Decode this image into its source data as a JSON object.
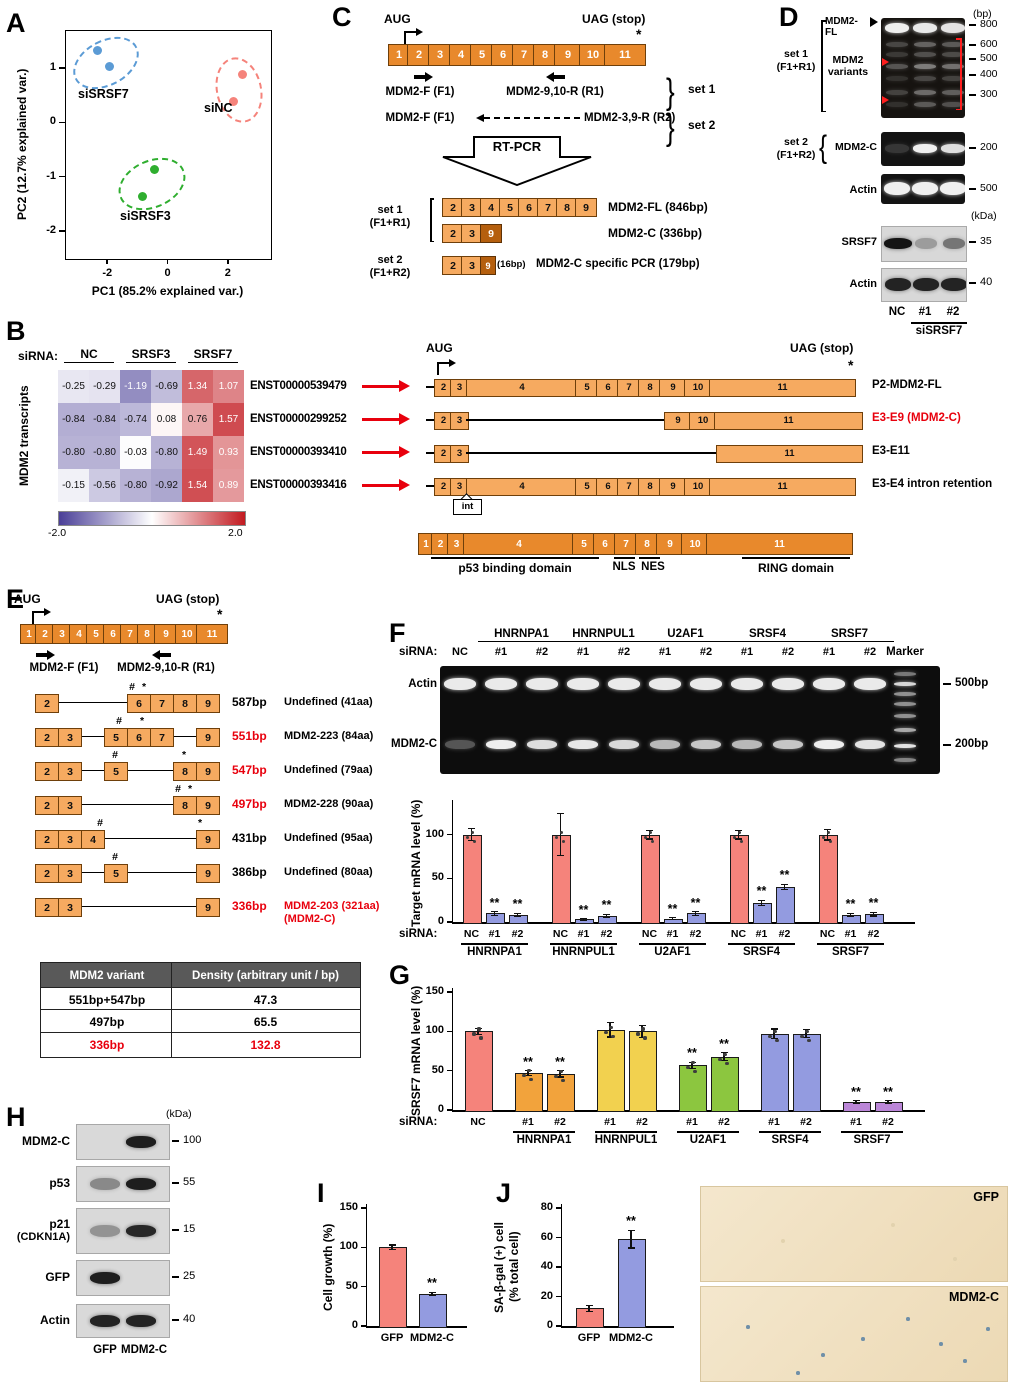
{
  "panels": {
    "A": "A",
    "B": "B",
    "C": "C",
    "D": "D",
    "E": "E",
    "F": "F",
    "G": "G",
    "H": "H",
    "I": "I",
    "J": "J"
  },
  "colors": {
    "exon_dark": "#e8892c",
    "exon_light": "#f6aa60",
    "exon_deep": "#b55f0e",
    "accent_red": "#e8000d",
    "salmon": "#f5837b",
    "periwinkle": "#939be0",
    "orange": "#f2a33c",
    "yellow": "#f2d14f",
    "green": "#8cc63f",
    "purple": "#bb86d8",
    "heat_neg": "#4a3f97",
    "heat_pos": "#c21a20"
  },
  "chart_data": [
    {
      "id": "pca",
      "type": "scatter",
      "xlabel": "PC1 (85.2% explained var.)",
      "ylabel": "PC2 (12.7% explained var.)",
      "xlim": [
        -3.4,
        3.4
      ],
      "ylim": [
        -2.5,
        1.7
      ],
      "xticks": [
        -2,
        0,
        2
      ],
      "yticks": [
        1,
        0,
        -1,
        -2
      ],
      "series": [
        {
          "name": "siSRSF7",
          "color": "#5b9bd5",
          "points": [
            [
              -2.35,
              1.35
            ],
            [
              -1.95,
              1.05
            ]
          ]
        },
        {
          "name": "siNC",
          "color": "#f5837b",
          "points": [
            [
              2.45,
              0.9
            ],
            [
              2.15,
              0.4
            ]
          ]
        },
        {
          "name": "siSRSF3",
          "color": "#2fae2f",
          "points": [
            [
              -0.45,
              -0.85
            ],
            [
              -0.85,
              -1.35
            ]
          ]
        }
      ]
    },
    {
      "id": "mdm2_heatmap",
      "type": "heatmap",
      "vmin": -2,
      "vmax": 2,
      "col_groups": [
        "NC",
        "SRSF3",
        "SRSF7"
      ],
      "rows": [
        "ENST00000539479",
        "ENST00000299252",
        "ENST00000393410",
        "ENST00000393416"
      ],
      "values": [
        [
          -0.25,
          -0.29,
          -1.19,
          -0.69,
          1.34,
          1.07
        ],
        [
          -0.84,
          -0.84,
          -0.74,
          0.08,
          0.76,
          1.57
        ],
        [
          -0.8,
          -0.8,
          -0.03,
          -0.8,
          1.49,
          0.93
        ],
        [
          -0.15,
          -0.56,
          -0.8,
          -0.92,
          1.54,
          0.89
        ]
      ]
    },
    {
      "id": "target_mrna",
      "type": "bar",
      "ylabel": "Target mRNA level (%)",
      "ylim": [
        0,
        135
      ],
      "yticks": [
        0,
        50,
        100
      ],
      "sirna_label": "siRNA:",
      "groups": [
        {
          "name": "HNRNPA1",
          "bars": [
            {
              "label": "NC",
              "value": 100,
              "err": 7,
              "color": "salmon",
              "dots": true
            },
            {
              "label": "#1",
              "value": 10,
              "err": 2,
              "color": "periwinkle",
              "sig": "**"
            },
            {
              "label": "#2",
              "value": 8,
              "err": 2,
              "color": "periwinkle",
              "sig": "**"
            }
          ]
        },
        {
          "name": "HNRNPUL1",
          "bars": [
            {
              "label": "NC",
              "value": 100,
              "err": 24,
              "color": "salmon",
              "dots": true
            },
            {
              "label": "#1",
              "value": 3,
              "err": 1,
              "color": "periwinkle",
              "sig": "**"
            },
            {
              "label": "#2",
              "value": 7,
              "err": 2,
              "color": "periwinkle",
              "sig": "**"
            }
          ]
        },
        {
          "name": "U2AF1",
          "bars": [
            {
              "label": "NC",
              "value": 100,
              "err": 5,
              "color": "salmon",
              "dots": true
            },
            {
              "label": "#1",
              "value": 4,
              "err": 1,
              "color": "periwinkle",
              "sig": "**"
            },
            {
              "label": "#2",
              "value": 10,
              "err": 2,
              "color": "periwinkle",
              "sig": "**"
            }
          ]
        },
        {
          "name": "SRSF4",
          "bars": [
            {
              "label": "NC",
              "value": 100,
              "err": 5,
              "color": "salmon",
              "dots": true
            },
            {
              "label": "#1",
              "value": 22,
              "err": 3,
              "color": "periwinkle",
              "sig": "**"
            },
            {
              "label": "#2",
              "value": 40,
              "err": 3,
              "color": "periwinkle",
              "sig": "**"
            }
          ]
        },
        {
          "name": "SRSF7",
          "bars": [
            {
              "label": "NC",
              "value": 100,
              "err": 6,
              "color": "salmon",
              "dots": true
            },
            {
              "label": "#1",
              "value": 8,
              "err": 2,
              "color": "periwinkle",
              "sig": "**"
            },
            {
              "label": "#2",
              "value": 9,
              "err": 2,
              "color": "periwinkle",
              "sig": "**"
            }
          ]
        }
      ]
    },
    {
      "id": "srsf7_mrna",
      "type": "bar",
      "ylabel": "SRSF7 mRNA level (%)",
      "ylim": [
        0,
        150
      ],
      "yticks": [
        0,
        50,
        100,
        150
      ],
      "sirna_label": "siRNA:",
      "groups": [
        {
          "name": "",
          "bars": [
            {
              "label": "NC",
              "value": 100,
              "err": 4,
              "color": "salmon",
              "dots": true
            }
          ]
        },
        {
          "name": "HNRNPA1",
          "bars": [
            {
              "label": "#1",
              "value": 47,
              "err": 3,
              "color": "orange",
              "sig": "**",
              "dots": true
            },
            {
              "label": "#2",
              "value": 46,
              "err": 4,
              "color": "orange",
              "sig": "**",
              "dots": true
            }
          ]
        },
        {
          "name": "HNRNPUL1",
          "bars": [
            {
              "label": "#1",
              "value": 102,
              "err": 9,
              "color": "yellow",
              "dots": true
            },
            {
              "label": "#2",
              "value": 100,
              "err": 8,
              "color": "yellow",
              "dots": true
            }
          ]
        },
        {
          "name": "U2AF1",
          "bars": [
            {
              "label": "#1",
              "value": 57,
              "err": 4,
              "color": "green",
              "sig": "**",
              "dots": true
            },
            {
              "label": "#2",
              "value": 68,
              "err": 5,
              "color": "green",
              "sig": "**",
              "dots": true
            }
          ]
        },
        {
          "name": "SRSF4",
          "bars": [
            {
              "label": "#1",
              "value": 97,
              "err": 6,
              "color": "periwinkle",
              "dots": true
            },
            {
              "label": "#2",
              "value": 97,
              "err": 5,
              "color": "periwinkle",
              "dots": true
            }
          ]
        },
        {
          "name": "SRSF7",
          "bars": [
            {
              "label": "#1",
              "value": 10,
              "err": 2,
              "color": "purple",
              "sig": "**"
            },
            {
              "label": "#2",
              "value": 10,
              "err": 2,
              "color": "purple",
              "sig": "**"
            }
          ]
        }
      ]
    },
    {
      "id": "cell_growth",
      "type": "bar",
      "ylabel": "Cell growth (%)",
      "ylim": [
        0,
        150
      ],
      "yticks": [
        0,
        50,
        100,
        150
      ],
      "groups": [
        {
          "name": "",
          "bars": [
            {
              "label": "GFP",
              "value": 100,
              "err": 3,
              "color": "salmon"
            },
            {
              "label": "MDM2-C",
              "value": 41,
              "err": 2,
              "color": "periwinkle",
              "sig": "**"
            }
          ]
        }
      ]
    },
    {
      "id": "sa_bgal",
      "type": "bar",
      "ylabel": [
        "SA-β-gal (+) cell",
        "(% total cell)"
      ],
      "ylim": [
        0,
        80
      ],
      "yticks": [
        0,
        20,
        40,
        60,
        80
      ],
      "groups": [
        {
          "name": "",
          "bars": [
            {
              "label": "GFP",
              "value": 12,
              "err": 2,
              "color": "salmon"
            },
            {
              "label": "MDM2-C",
              "value": 59,
              "err": 6,
              "color": "periwinkle",
              "sig": "**"
            }
          ]
        }
      ]
    }
  ],
  "panelB": {
    "sirna": "siRNA:",
    "col_groups": [
      "NC",
      "SRSF3",
      "SRSF7"
    ],
    "row_axis": "MDM2 transcripts",
    "aug": "AUG",
    "uag": "UAG (stop)",
    "star": "*",
    "int_label": "int",
    "scale_min": "-2.0",
    "scale_max": "2.0",
    "transcripts": [
      {
        "id": "ENST00000539479",
        "name": "P2-MDM2-FL",
        "red": false,
        "segs": [
          [
            "x",
            "2",
            17
          ],
          [
            "x",
            "3",
            17
          ],
          [
            "x",
            "4",
            110
          ],
          [
            "x",
            "5",
            22
          ],
          [
            "x",
            "6",
            22
          ],
          [
            "x",
            "7",
            22
          ],
          [
            "x",
            "8",
            22
          ],
          [
            "x",
            "9",
            26
          ],
          [
            "x",
            "10",
            26
          ],
          [
            "x",
            "11",
            145
          ]
        ]
      },
      {
        "id": "ENST00000299252",
        "name": "E3-E9 (MDM2-C)",
        "red": true,
        "segs": [
          [
            "x",
            "2",
            17
          ],
          [
            "x",
            "3",
            17
          ],
          [
            "g",
            "",
            198
          ],
          [
            "x",
            "9",
            26
          ],
          [
            "x",
            "10",
            26
          ],
          [
            "x",
            "11",
            147
          ]
        ]
      },
      {
        "id": "ENST00000393410",
        "name": "E3-E11",
        "red": false,
        "segs": [
          [
            "x",
            "2",
            17
          ],
          [
            "x",
            "3",
            17
          ],
          [
            "g",
            "",
            250
          ],
          [
            "x",
            "11",
            145
          ]
        ]
      },
      {
        "id": "ENST00000393416",
        "name": "E3-E4 intron retention",
        "red": false,
        "int_at": 2,
        "segs": [
          [
            "x",
            "2",
            17
          ],
          [
            "x",
            "3",
            17
          ],
          [
            "x",
            "4",
            110
          ],
          [
            "x",
            "5",
            22
          ],
          [
            "x",
            "6",
            22
          ],
          [
            "x",
            "7",
            22
          ],
          [
            "x",
            "8",
            22
          ],
          [
            "x",
            "9",
            26
          ],
          [
            "x",
            "10",
            26
          ],
          [
            "x",
            "11",
            145
          ]
        ]
      }
    ],
    "full_exons": [
      "1",
      "2",
      "3",
      "4",
      "5",
      "6",
      "7",
      "8",
      "9",
      "10",
      "11"
    ],
    "full_widths": [
      14,
      17,
      17,
      110,
      22,
      22,
      22,
      22,
      26,
      26,
      145
    ],
    "domains": {
      "p53": "p53 binding domain",
      "nls": "NLS",
      "nes": "NES",
      "ring": "RING domain"
    }
  },
  "panelC": {
    "aug": "AUG",
    "uag": "UAG (stop)",
    "star": "*",
    "brace": "}",
    "exons": [
      "1",
      "2",
      "3",
      "4",
      "5",
      "6",
      "7",
      "8",
      "9",
      "10",
      "11"
    ],
    "primer_f1": "MDM2-F (F1)",
    "primer_r1": "MDM2-9,10-R (R1)",
    "primer_r2": "MDM2-3,9-R (R2)",
    "set1": "set 1",
    "set2": "set 2",
    "set1_paren": "(F1+R1)",
    "set2_paren": "(F1+R2)",
    "rtpcr": "RT-PCR",
    "fl_exons": [
      "2",
      "3",
      "4",
      "5",
      "6",
      "7",
      "8",
      "9"
    ],
    "c_exons": [
      "2",
      "3"
    ],
    "c_last": "9",
    "fl_name": "MDM2-FL (846bp)",
    "c_name": "MDM2-C (336bp)",
    "bp16": "(16bp)",
    "specific_name": "MDM2-C specific PCR (179bp)"
  },
  "panelD": {
    "bp": "(bp)",
    "kda": "(kDa)",
    "brace": "{",
    "set1": "set 1",
    "set1_paren": "(F1+R1)",
    "set2": "set 2",
    "set2_paren": "(F1+R2)",
    "mdm2fl": "MDM2-FL",
    "variants1": "MDM2",
    "variants2": "variants",
    "mdm2c": "MDM2-C",
    "actin": "Actin",
    "srsf7": "SRSF7",
    "gel1_markers": [
      "800",
      "600",
      "500",
      "400",
      "300"
    ],
    "gel2_marker": "200",
    "gel3_marker": "500",
    "blot1_marker": "35",
    "blot2_marker": "40",
    "lanes": [
      "NC",
      "#1",
      "#2"
    ],
    "sirna_group": "siSRSF7",
    "band_fl": [
      0.95,
      0.92,
      0.9
    ],
    "band_variants": [
      [
        0.22,
        0.16,
        0.28,
        0.12,
        0.2,
        0.12
      ],
      [
        0.34,
        0.26,
        0.45,
        0.22,
        0.38,
        0.3
      ],
      [
        0.3,
        0.24,
        0.4,
        0.2,
        0.32,
        0.26
      ]
    ],
    "band_set2": [
      0.15,
      0.95,
      0.88
    ],
    "band_actin_gel": [
      0.95,
      0.95,
      0.95
    ],
    "band_srsf7": [
      1,
      0.3,
      0.5
    ],
    "band_actin_blot": [
      0.92,
      0.92,
      0.92
    ]
  },
  "panelE": {
    "aug": "AUG",
    "uag": "UAG (stop)",
    "star": "*",
    "exons": [
      "1",
      "2",
      "3",
      "4",
      "5",
      "6",
      "7",
      "8",
      "9",
      "10",
      "11"
    ],
    "primer_f1": "MDM2-F (F1)",
    "primer_r1": "MDM2-9,10-R (R1)",
    "variants": [
      {
        "exons": [
          2,
          6,
          7,
          8,
          9
        ],
        "marks": [
          [
            6,
            -6,
            "#"
          ],
          [
            6,
            6,
            "*"
          ]
        ],
        "bp": "587bp",
        "bp_red": false,
        "name": "Undefined (41aa)",
        "name_red": false
      },
      {
        "exons": [
          2,
          3,
          5,
          6,
          7,
          9
        ],
        "marks": [
          [
            5,
            4,
            "#"
          ],
          [
            6,
            4,
            "*"
          ]
        ],
        "bp": "551bp",
        "bp_red": true,
        "name": "MDM2-223 (84aa)",
        "name_red": false
      },
      {
        "exons": [
          2,
          3,
          5,
          8,
          9
        ],
        "marks": [
          [
            5,
            0,
            "#"
          ],
          [
            8,
            0,
            "*"
          ]
        ],
        "bp": "547bp",
        "bp_red": true,
        "name": "Undefined (79aa)",
        "name_red": false
      },
      {
        "exons": [
          2,
          3,
          8,
          9
        ],
        "marks": [
          [
            8,
            -6,
            "#"
          ],
          [
            8,
            6,
            "*"
          ]
        ],
        "bp": "497bp",
        "bp_red": true,
        "name": "MDM2-228 (90aa)",
        "name_red": false
      },
      {
        "exons": [
          2,
          3,
          4,
          9
        ],
        "marks": [
          [
            4,
            8,
            "#"
          ],
          [
            9,
            -7,
            "*"
          ]
        ],
        "bp": "431bp",
        "bp_red": false,
        "name": "Undefined (95aa)",
        "name_red": false
      },
      {
        "exons": [
          2,
          3,
          5,
          9
        ],
        "marks": [
          [
            5,
            0,
            "#"
          ]
        ],
        "bp": "386bp",
        "bp_red": false,
        "name": "Undefined (80aa)",
        "name_red": false
      },
      {
        "exons": [
          2,
          3,
          9
        ],
        "marks": [],
        "bp": "336bp",
        "bp_red": true,
        "name": "MDM2-203 (321aa)",
        "name2": "(MDM2-C)",
        "name_red": true
      }
    ],
    "table_headers": [
      "MDM2 variant",
      "Density (arbitrary unit / bp)"
    ],
    "table_rows": [
      [
        "551bp+547bp",
        "47.3"
      ],
      [
        "497bp",
        "65.5"
      ],
      [
        "336bp",
        "132.8"
      ]
    ],
    "table_red_row": 2
  },
  "panelF": {
    "sirna": "siRNA:",
    "marker": "Marker",
    "genes": [
      "HNRNPA1",
      "HNRNPUL1",
      "U2AF1",
      "SRSF4",
      "SRSF7"
    ],
    "lane_labels": [
      "NC",
      "#1",
      "#2",
      "#1",
      "#2",
      "#1",
      "#2",
      "#1",
      "#2",
      "#1",
      "#2"
    ],
    "actin": "Actin",
    "mdm2c": "MDM2-C",
    "bp500": "500bp",
    "bp200": "200bp",
    "mdm2c_band": [
      0.3,
      0.95,
      0.88,
      0.92,
      0.86,
      0.72,
      0.78,
      0.72,
      0.78,
      0.95,
      0.9
    ]
  },
  "panelH": {
    "kda": "(kDa)",
    "blots": [
      {
        "label": "MDM2-C",
        "marker": "100",
        "bands": [
          0,
          0.95
        ]
      },
      {
        "label": "p53",
        "marker": "55",
        "bands": [
          0.4,
          0.95
        ]
      },
      {
        "label": "p21",
        "label2": "(CDKN1A)",
        "marker": "15",
        "bands": [
          0.35,
          0.9
        ]
      },
      {
        "label": "GFP",
        "marker": "25",
        "bands": [
          0.95,
          0
        ]
      },
      {
        "label": "Actin",
        "marker": "40",
        "bands": [
          0.92,
          0.92
        ]
      }
    ],
    "lanes": [
      "GFP",
      "MDM2-C"
    ]
  },
  "panelJ": {
    "images": [
      {
        "label": "GFP"
      },
      {
        "label": "MDM2-C"
      }
    ]
  }
}
